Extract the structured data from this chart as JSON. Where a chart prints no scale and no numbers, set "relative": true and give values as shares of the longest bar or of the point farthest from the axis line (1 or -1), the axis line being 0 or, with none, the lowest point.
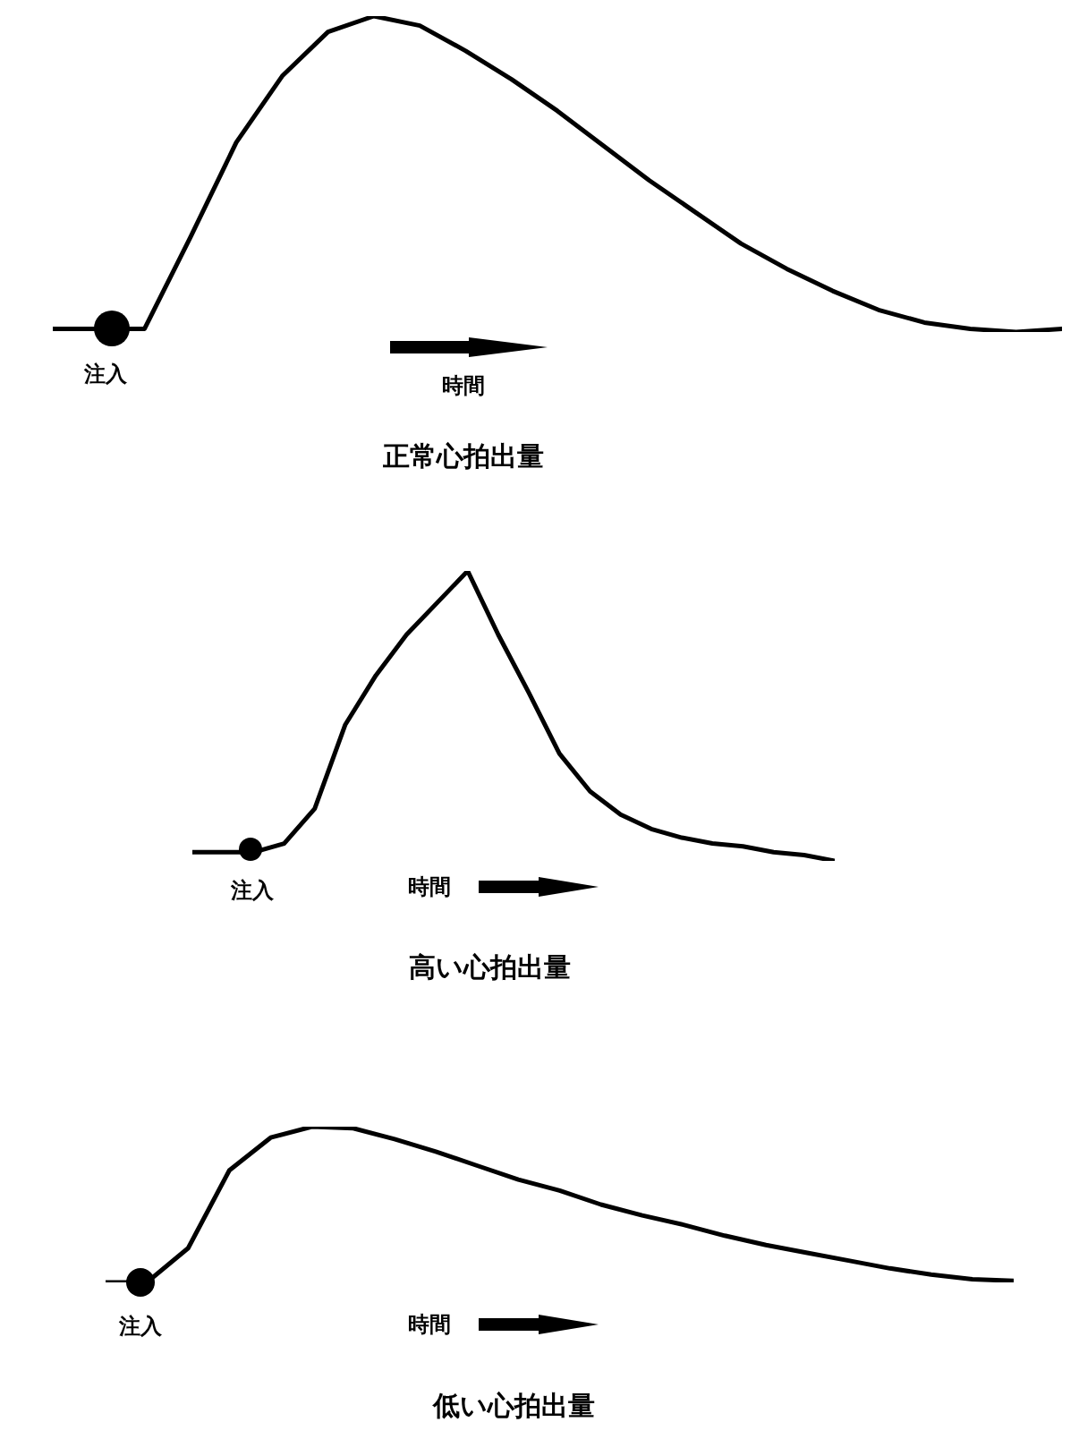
{
  "chart_data": [
    {
      "type": "line",
      "title": "正常心拍出量",
      "annotations": [
        "注入",
        "時間"
      ],
      "relative": true,
      "color": "#000000",
      "categories": [
        null,
        null,
        null,
        null,
        null,
        null,
        null,
        null,
        null,
        null,
        null,
        null,
        null,
        null,
        null,
        null,
        null,
        null,
        null,
        null,
        null,
        null,
        null
      ],
      "values": [
        0.01,
        0.01,
        0.01,
        0.3,
        0.6,
        0.81,
        0.95,
        1.0,
        0.97,
        0.89,
        0.8,
        0.7,
        0.59,
        0.48,
        0.38,
        0.28,
        0.2,
        0.13,
        0.07,
        0.03,
        0.01,
        0,
        0.01
      ]
    },
    {
      "type": "line",
      "title": "高い心拍出量",
      "annotations": [
        "注入",
        "時間"
      ],
      "relative": true,
      "color": "#000000",
      "categories": [
        null,
        null,
        null,
        null,
        null,
        null,
        null,
        null,
        null,
        null,
        null,
        null,
        null,
        null,
        null,
        null,
        null,
        null,
        null,
        null,
        null,
        null
      ],
      "values": [
        0.03,
        0.03,
        0.03,
        0.06,
        0.18,
        0.47,
        0.64,
        0.78,
        0.89,
        1.0,
        0.78,
        0.58,
        0.37,
        0.24,
        0.16,
        0.11,
        0.08,
        0.06,
        0.05,
        0.03,
        0.02,
        0
      ]
    },
    {
      "type": "line",
      "title": "低い心拍出量",
      "annotations": [
        "注入",
        "時間"
      ],
      "relative": true,
      "color": "#000000",
      "categories": [
        null,
        null,
        null,
        null,
        null,
        null,
        null,
        null,
        null,
        null,
        null,
        null,
        null,
        null,
        null,
        null,
        null,
        null,
        null,
        null,
        null,
        null,
        null
      ],
      "values": [
        0,
        0,
        0.22,
        0.72,
        0.93,
        1.0,
        0.99,
        0.92,
        0.84,
        0.75,
        0.66,
        0.59,
        0.5,
        0.43,
        0.37,
        0.3,
        0.24,
        0.19,
        0.14,
        0.09,
        0.05,
        0.02,
        0.01
      ]
    }
  ]
}
